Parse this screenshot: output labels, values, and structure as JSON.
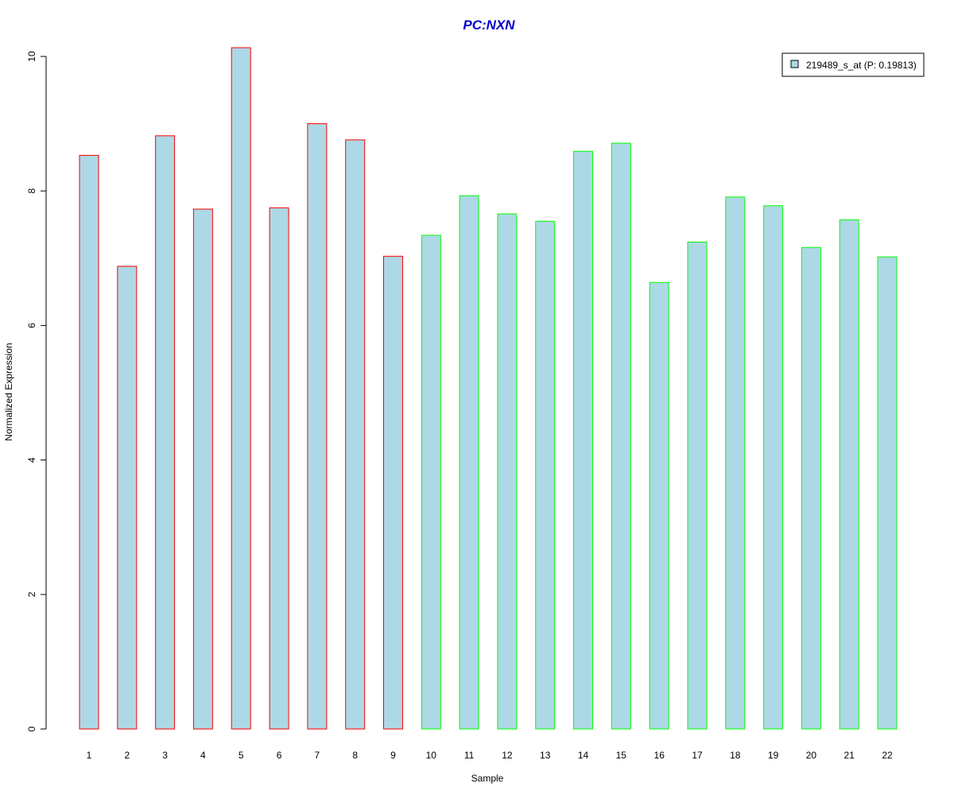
{
  "colors": {
    "title": "#0000CC",
    "bar_fill": "#ADD8E6",
    "group1_border": "#FF0000",
    "group2_border": "#00FF00",
    "axis": "#000000"
  },
  "chart_data": {
    "type": "bar",
    "title": "PC:NXN",
    "xlabel": "Sample",
    "ylabel": "Normalized Expression",
    "ylim": [
      0,
      10
    ],
    "yticks": [
      0,
      2,
      4,
      6,
      8,
      10
    ],
    "grid": false,
    "legend_position": "top-right",
    "categories": [
      "1",
      "2",
      "3",
      "4",
      "5",
      "6",
      "7",
      "8",
      "9",
      "10",
      "11",
      "12",
      "13",
      "14",
      "15",
      "16",
      "17",
      "18",
      "19",
      "20",
      "21",
      "22"
    ],
    "series": [
      {
        "name": "219489_s_at (P: 0.19813)",
        "values": [
          8.53,
          6.88,
          8.82,
          7.73,
          10.13,
          7.75,
          9.0,
          8.76,
          7.03,
          7.34,
          7.93,
          7.66,
          7.55,
          8.59,
          8.71,
          6.64,
          7.24,
          7.91,
          7.78,
          7.16,
          7.57,
          7.02
        ]
      }
    ],
    "border_groups": [
      "group1",
      "group1",
      "group1",
      "group1",
      "group1",
      "group1",
      "group1",
      "group1",
      "group1",
      "group2",
      "group2",
      "group2",
      "group2",
      "group2",
      "group2",
      "group2",
      "group2",
      "group2",
      "group2",
      "group2",
      "group2",
      "group2"
    ]
  }
}
